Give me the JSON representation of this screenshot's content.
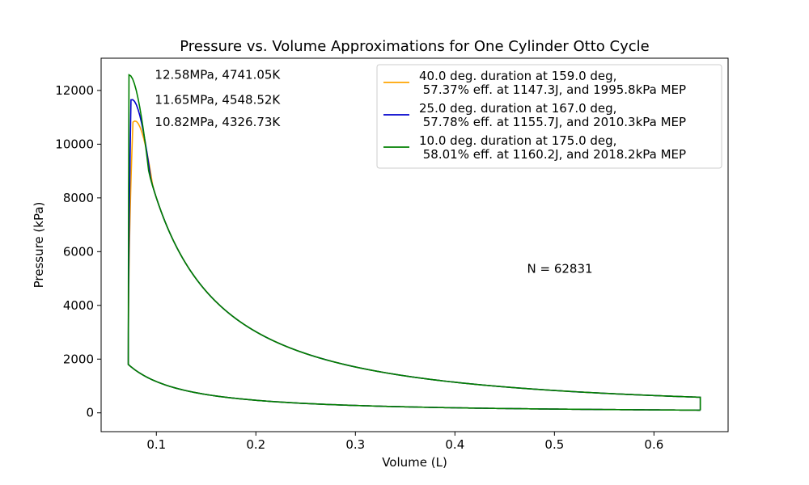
{
  "chart_data": {
    "type": "line",
    "title": "Pressure vs. Volume Approximations for One Cylinder Otto Cycle",
    "xlabel": "Volume (L)",
    "ylabel": "Pressure (kPa)",
    "xlim": [
      0.0445,
      0.6745
    ],
    "ylim": [
      -700,
      13200
    ],
    "xticks": [
      0.1,
      0.2,
      0.3,
      0.4,
      0.5,
      0.6
    ],
    "yticks": [
      0,
      2000,
      4000,
      6000,
      8000,
      10000,
      12000
    ],
    "grid": false,
    "legend_position": "upper-right",
    "geometry": {
      "v_min": 0.0718,
      "v_max": 0.6466,
      "p_low_at_vmax": 100,
      "p_low_at_vmin": 1800,
      "p_high_at_vmax": 580
    },
    "series": [
      {
        "name": "40.0 deg. duration at 159.0 deg,\n 57.37% eff. at 1147.3J, and 1995.8kPa MEP",
        "color": "#ffa500",
        "peak_pressure_kpa": 10820,
        "peak_volume_l": 0.0765,
        "combustion_rise_width_l": 0.0115
      },
      {
        "name": "25.0 deg. duration at 167.0 deg,\n 57.78% eff. at 1155.7J, and 2010.3kPa MEP",
        "color": "#0000cd",
        "peak_pressure_kpa": 11650,
        "peak_volume_l": 0.0745,
        "combustion_rise_width_l": 0.0055
      },
      {
        "name": "10.0 deg. duration at 175.0 deg,\n 58.01% eff. at 1160.2J, and 2018.2kPa MEP",
        "color": "#008000",
        "peak_pressure_kpa": 12580,
        "peak_volume_l": 0.0725,
        "combustion_rise_width_l": 0.0008
      }
    ],
    "annotations": [
      {
        "text": "12.58MPa, 4741.05K",
        "x": 0.0985,
        "y": 12580
      },
      {
        "text": "11.65MPa, 4548.52K",
        "x": 0.0985,
        "y": 11650
      },
      {
        "text": "10.82MPa, 4326.73K",
        "x": 0.0985,
        "y": 10820
      },
      {
        "text": "N = 62831",
        "x": 0.4725,
        "y": 5360
      }
    ]
  }
}
